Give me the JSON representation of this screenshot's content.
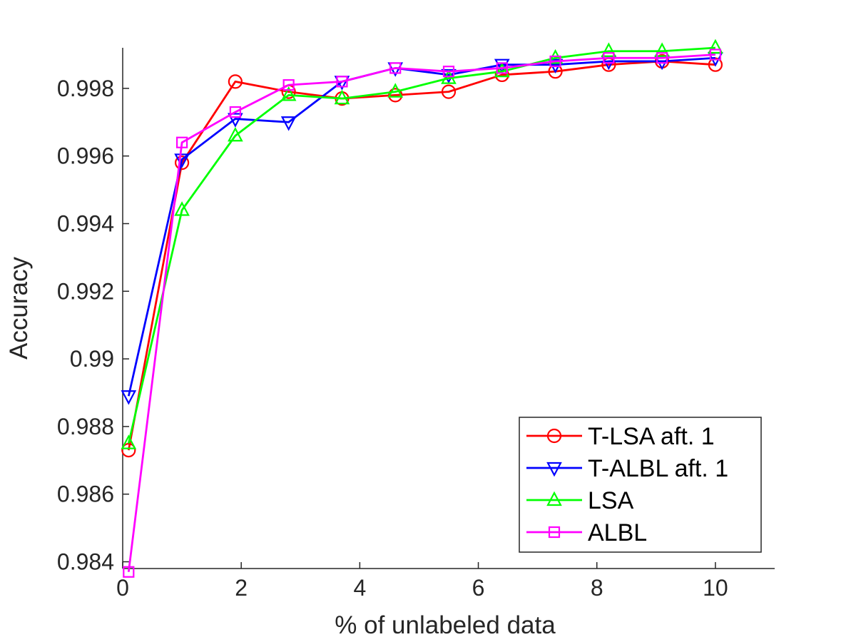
{
  "chart_data": {
    "type": "line",
    "xlabel": "% of unlabeled data",
    "ylabel": "Accuracy",
    "xlim": [
      0,
      11
    ],
    "ylim": [
      0.9838,
      0.9992
    ],
    "xticks": [
      0,
      2,
      4,
      6,
      8,
      10
    ],
    "xtick_labels": [
      "0",
      "2",
      "4",
      "6",
      "8",
      "10"
    ],
    "yticks": [
      0.984,
      0.986,
      0.988,
      0.99,
      0.992,
      0.994,
      0.996,
      0.998
    ],
    "ytick_labels": [
      "0.984",
      "0.986",
      "0.988",
      "0.99",
      "0.992",
      "0.994",
      "0.996",
      "0.998"
    ],
    "grid": false,
    "legend_position": "bottom-right",
    "x": [
      0.1,
      1.0,
      1.9,
      2.8,
      3.7,
      4.6,
      5.5,
      6.4,
      7.3,
      8.2,
      9.1,
      10.0
    ],
    "series": [
      {
        "name": "T-LSA aft. 1",
        "color": "#ff0000",
        "marker": "circle",
        "values": [
          0.9873,
          0.9958,
          0.9982,
          0.9979,
          0.9977,
          0.9978,
          0.9979,
          0.9984,
          0.9985,
          0.9987,
          0.9988,
          0.9987
        ]
      },
      {
        "name": "T-ALBL aft. 1",
        "color": "#0000ff",
        "marker": "triangle-down",
        "values": [
          0.9889,
          0.9959,
          0.9971,
          0.997,
          0.9982,
          0.9986,
          0.9984,
          0.9987,
          0.9987,
          0.9988,
          0.9988,
          0.9989
        ]
      },
      {
        "name": "LSA",
        "color": "#00ff00",
        "marker": "triangle-up",
        "values": [
          0.9875,
          0.9944,
          0.9966,
          0.9978,
          0.9977,
          0.9979,
          0.9983,
          0.9985,
          0.9989,
          0.9991,
          0.9991,
          0.9992
        ]
      },
      {
        "name": "ALBL",
        "color": "#ff00ff",
        "marker": "square",
        "values": [
          0.9837,
          0.9964,
          0.9973,
          0.9981,
          0.9982,
          0.9986,
          0.9985,
          0.9986,
          0.9988,
          0.9989,
          0.9989,
          0.999
        ]
      }
    ]
  }
}
